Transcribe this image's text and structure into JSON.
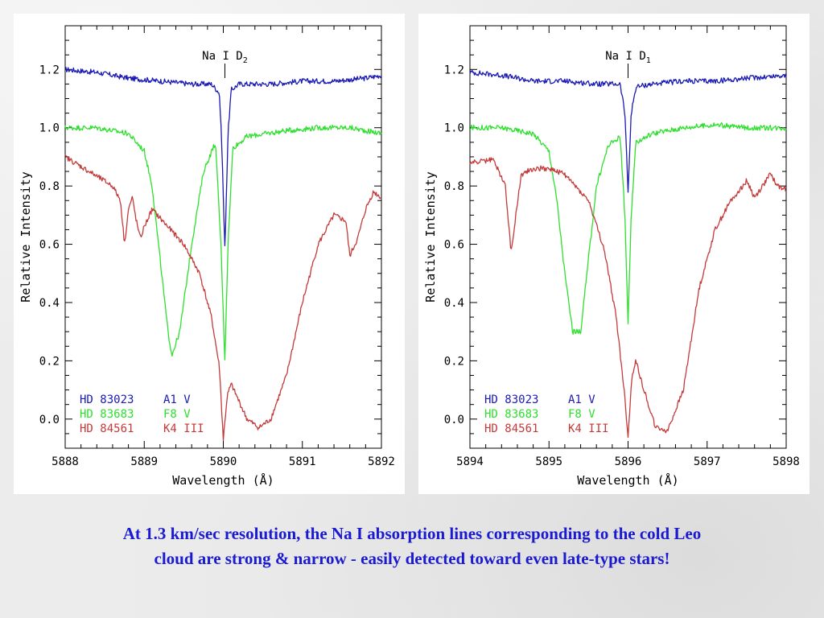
{
  "caption": {
    "line1": "At 1.3 km/sec resolution, the Na I absorption lines corresponding to the cold Leo",
    "line2": "cloud are strong & narrow - easily detected toward even late-type stars!"
  },
  "colors": {
    "blue": "#1a1ab4",
    "green": "#2ee02e",
    "red": "#c43a3a",
    "caption": "#1a1ad0"
  },
  "chart_data": [
    {
      "type": "line",
      "title": "",
      "line_label": {
        "base": "Na I D",
        "sub": "2"
      },
      "line_position": 5890.02,
      "xlabel": "Wavelength (Å)",
      "ylabel": "Relative Intensity",
      "xlim": [
        5888,
        5892
      ],
      "ylim": [
        -0.1,
        1.35
      ],
      "xticks": [
        5888,
        5889,
        5890,
        5891,
        5892
      ],
      "yticks": [
        0.0,
        0.2,
        0.4,
        0.6,
        0.8,
        1.0,
        1.2
      ],
      "ytick_labels": [
        "0.0",
        "0.2",
        "0.4",
        "0.6",
        "0.8",
        "1.0",
        "1.2"
      ],
      "grid": false,
      "legend_placement": "bottom-left",
      "series": [
        {
          "name": "HD 83023",
          "sptype": "A1 V",
          "color": "#1a1ab4",
          "x": [
            5888.0,
            5888.4,
            5888.8,
            5889.2,
            5889.6,
            5889.85,
            5889.95,
            5889.98,
            5890.02,
            5890.06,
            5890.1,
            5890.2,
            5890.6,
            5891.0,
            5891.4,
            5891.8,
            5892.0
          ],
          "y": [
            1.2,
            1.19,
            1.17,
            1.16,
            1.15,
            1.15,
            1.12,
            0.95,
            0.58,
            0.98,
            1.13,
            1.15,
            1.15,
            1.16,
            1.16,
            1.17,
            1.18
          ]
        },
        {
          "name": "HD 83683",
          "sptype": "F8 V",
          "color": "#2ee02e",
          "x": [
            5888.0,
            5888.4,
            5888.8,
            5889.0,
            5889.1,
            5889.2,
            5889.3,
            5889.35,
            5889.45,
            5889.6,
            5889.75,
            5889.9,
            5889.97,
            5890.02,
            5890.06,
            5890.12,
            5890.3,
            5890.8,
            5891.2,
            5891.6,
            5892.0
          ],
          "y": [
            1.0,
            1.0,
            0.98,
            0.92,
            0.8,
            0.55,
            0.3,
            0.22,
            0.3,
            0.6,
            0.85,
            0.95,
            0.6,
            0.2,
            0.6,
            0.93,
            0.97,
            0.99,
            1.0,
            1.0,
            0.98
          ]
        },
        {
          "name": "HD 84561",
          "sptype": "K4 III",
          "color": "#c43a3a",
          "x": [
            5888.0,
            5888.3,
            5888.6,
            5888.7,
            5888.75,
            5888.8,
            5888.85,
            5888.9,
            5888.95,
            5889.0,
            5889.1,
            5889.3,
            5889.5,
            5889.7,
            5889.85,
            5889.95,
            5890.0,
            5890.05,
            5890.1,
            5890.3,
            5890.45,
            5890.6,
            5890.8,
            5891.0,
            5891.2,
            5891.4,
            5891.55,
            5891.6,
            5891.7,
            5891.8,
            5891.9,
            5892.0
          ],
          "y": [
            0.9,
            0.85,
            0.8,
            0.75,
            0.6,
            0.72,
            0.76,
            0.68,
            0.62,
            0.66,
            0.72,
            0.66,
            0.6,
            0.5,
            0.35,
            0.18,
            -0.07,
            0.08,
            0.12,
            0.0,
            -0.03,
            0.0,
            0.15,
            0.4,
            0.6,
            0.7,
            0.68,
            0.56,
            0.62,
            0.72,
            0.78,
            0.76
          ]
        }
      ]
    },
    {
      "type": "line",
      "title": "",
      "line_label": {
        "base": "Na I D",
        "sub": "1"
      },
      "line_position": 5896.0,
      "xlabel": "Wavelength (Å)",
      "ylabel": "Relative Intensity",
      "xlim": [
        5894,
        5898
      ],
      "ylim": [
        -0.1,
        1.35
      ],
      "xticks": [
        5894,
        5895,
        5896,
        5897,
        5898
      ],
      "yticks": [
        0.0,
        0.2,
        0.4,
        0.6,
        0.8,
        1.0,
        1.2
      ],
      "ytick_labels": [
        "0.0",
        "0.2",
        "0.4",
        "0.6",
        "0.8",
        "1.0",
        "1.2"
      ],
      "grid": false,
      "legend_placement": "bottom-left",
      "series": [
        {
          "name": "HD 83023",
          "sptype": "A1 V",
          "color": "#1a1ab4",
          "x": [
            5894.0,
            5894.4,
            5894.8,
            5895.2,
            5895.6,
            5895.9,
            5895.96,
            5896.0,
            5896.04,
            5896.1,
            5896.3,
            5896.7,
            5897.1,
            5897.5,
            5898.0
          ],
          "y": [
            1.19,
            1.18,
            1.16,
            1.16,
            1.15,
            1.15,
            1.05,
            0.78,
            1.05,
            1.14,
            1.15,
            1.16,
            1.16,
            1.17,
            1.18
          ]
        },
        {
          "name": "HD 83683",
          "sptype": "F8 V",
          "color": "#2ee02e",
          "x": [
            5894.0,
            5894.4,
            5894.8,
            5895.0,
            5895.1,
            5895.2,
            5895.3,
            5895.4,
            5895.5,
            5895.6,
            5895.75,
            5895.9,
            5895.96,
            5896.0,
            5896.04,
            5896.1,
            5896.3,
            5896.7,
            5897.1,
            5897.5,
            5898.0
          ],
          "y": [
            1.0,
            1.0,
            0.98,
            0.92,
            0.75,
            0.5,
            0.3,
            0.3,
            0.55,
            0.8,
            0.94,
            0.97,
            0.7,
            0.32,
            0.7,
            0.95,
            0.98,
            1.0,
            1.01,
            1.0,
            1.0
          ]
        },
        {
          "name": "HD 84561",
          "sptype": "K4 III",
          "color": "#c43a3a",
          "x": [
            5894.0,
            5894.3,
            5894.45,
            5894.52,
            5894.58,
            5894.65,
            5894.8,
            5895.0,
            5895.2,
            5895.5,
            5895.7,
            5895.85,
            5895.95,
            5896.0,
            5896.05,
            5896.1,
            5896.2,
            5896.35,
            5896.5,
            5896.7,
            5896.9,
            5897.1,
            5897.3,
            5897.45,
            5897.5,
            5897.6,
            5897.7,
            5897.8,
            5897.9,
            5898.0
          ],
          "y": [
            0.88,
            0.89,
            0.8,
            0.57,
            0.7,
            0.84,
            0.86,
            0.86,
            0.84,
            0.75,
            0.58,
            0.35,
            0.1,
            -0.06,
            0.15,
            0.2,
            0.1,
            -0.03,
            -0.04,
            0.1,
            0.45,
            0.65,
            0.75,
            0.8,
            0.82,
            0.76,
            0.8,
            0.84,
            0.8,
            0.79
          ]
        }
      ]
    }
  ]
}
